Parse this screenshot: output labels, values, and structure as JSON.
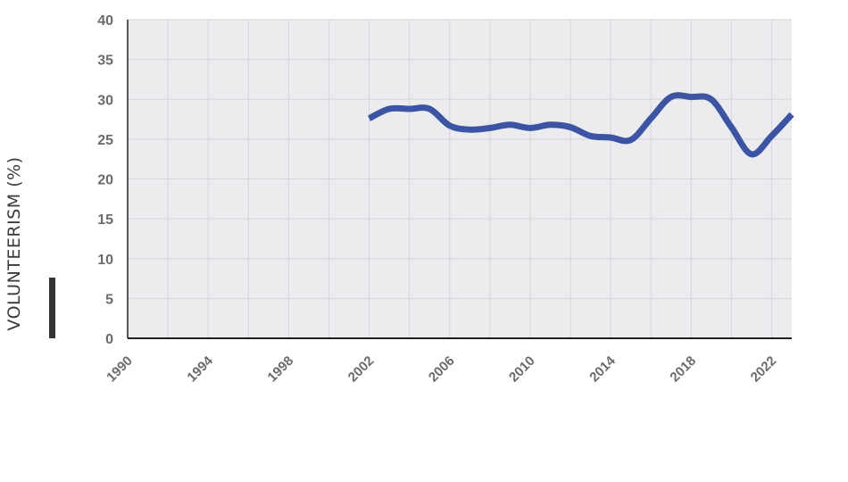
{
  "chart_data": {
    "type": "line",
    "title": "",
    "xlabel": "",
    "ylabel": "VOLUNTEERISM (%)",
    "xlim": [
      1990,
      2023
    ],
    "ylim": [
      0,
      40
    ],
    "x_ticks": [
      "1990",
      "1994",
      "1998",
      "2002",
      "2006",
      "2010",
      "2014",
      "2018",
      "2022"
    ],
    "y_ticks": [
      "0",
      "5",
      "10",
      "15",
      "20",
      "25",
      "30",
      "35",
      "40"
    ],
    "grid": true,
    "colors": {
      "plot_background": "#ececef",
      "grid": "#d6d6da",
      "line": "#3b54a4",
      "axis": "#222222",
      "accent_bar": "#333333"
    },
    "series": [
      {
        "x": [
          2002,
          2003,
          2004,
          2005,
          2006,
          2007,
          2008,
          2009,
          2010,
          2011,
          2012,
          2013,
          2014,
          2015,
          2016,
          2017,
          2018,
          2019,
          2020,
          2021,
          2022,
          2023
        ],
        "values": [
          27.6,
          28.8,
          28.8,
          28.8,
          26.7,
          26.2,
          26.4,
          26.8,
          26.4,
          26.8,
          26.5,
          25.4,
          25.2,
          24.9,
          27.6,
          30.3,
          30.3,
          30.0,
          26.5,
          23.1,
          25.4,
          28.1
        ]
      }
    ]
  }
}
